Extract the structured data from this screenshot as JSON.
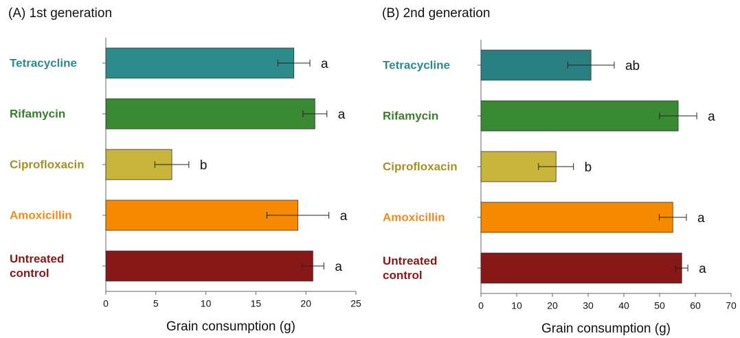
{
  "chart_data": [
    {
      "type": "hbar",
      "title": "(A) 1st generation",
      "x_label": "Grain consumption (g)",
      "categories": [
        "Tetracycline",
        "Rifamycin",
        "Ciprofloxacin",
        "Amoxicillin",
        "Untreated control"
      ],
      "values": [
        18.8,
        20.9,
        6.6,
        19.2,
        20.7
      ],
      "errors": [
        1.6,
        1.2,
        1.7,
        3.1,
        1.1
      ],
      "letters": [
        "a",
        "a",
        "b",
        "a",
        "a"
      ],
      "colors": [
        "#2e8b8b",
        "#3a8a34",
        "#c9b53c",
        "#f58a00",
        "#861818"
      ],
      "label_colors": [
        "#2b8a8a",
        "#3b7d2c",
        "#a39223",
        "#f28a1c",
        "#861818"
      ],
      "xlim": [
        0,
        25
      ],
      "xticks": [
        0,
        5,
        10,
        15,
        20,
        25
      ]
    },
    {
      "type": "hbar",
      "title": "(B) 2nd generation",
      "x_label": "Grain consumption (g)",
      "categories": [
        "Tetracycline",
        "Rifamycin",
        "Ciprofloxacin",
        "Amoxicillin",
        "Untreated control"
      ],
      "values": [
        30.8,
        55.2,
        21,
        53.7,
        56.2
      ],
      "errors": [
        6.5,
        5.2,
        4.9,
        3.8,
        1.7
      ],
      "letters": [
        "ab",
        "a",
        "b",
        "a",
        "a"
      ],
      "colors": [
        "#2a7f80",
        "#3a8a34",
        "#c9b53c",
        "#f58a00",
        "#861818"
      ],
      "label_colors": [
        "#2b8a8a",
        "#3b7d2c",
        "#a39223",
        "#f28a1c",
        "#861818"
      ],
      "xlim": [
        0,
        70
      ],
      "xticks": [
        0,
        10,
        20,
        30,
        40,
        50,
        60,
        70
      ]
    }
  ]
}
